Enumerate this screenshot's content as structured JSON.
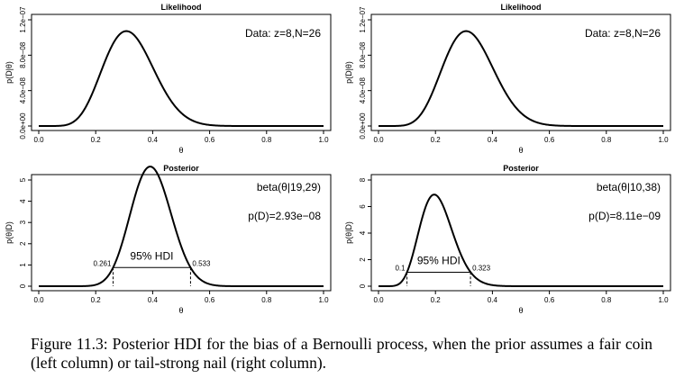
{
  "chart_data": [
    {
      "type": "line",
      "panel": "top-left",
      "title": "Likelihood",
      "xlabel": "θ",
      "ylabel": "p(D|θ)",
      "xlim": [
        0,
        1
      ],
      "ylim": [
        0,
        1.2e-07
      ],
      "xticks": [
        "0.0",
        "0.2",
        "0.4",
        "0.6",
        "0.8",
        "1.0"
      ],
      "yticks": [
        "0.0e+00",
        "4.0e−08",
        "8.0e−08",
        "1.2e−07"
      ],
      "annotation": "Data: z=8,N=26",
      "curve": {
        "kind": "likelihood",
        "z": 8,
        "N": 26
      }
    },
    {
      "type": "line",
      "panel": "top-right",
      "title": "Likelihood",
      "xlabel": "θ",
      "ylabel": "p(D|θ)",
      "xlim": [
        0,
        1
      ],
      "ylim": [
        0,
        1.2e-07
      ],
      "xticks": [
        "0.0",
        "0.2",
        "0.4",
        "0.6",
        "0.8",
        "1.0"
      ],
      "yticks": [
        "0.0e+00",
        "4.0e−08",
        "8.0e−08",
        "1.2e−07"
      ],
      "annotation": "Data: z=8,N=26",
      "curve": {
        "kind": "likelihood",
        "z": 8,
        "N": 26
      }
    },
    {
      "type": "line",
      "panel": "bottom-left",
      "title": "Posterior",
      "xlabel": "θ",
      "ylabel": "p(θ|D)",
      "xlim": [
        0,
        1
      ],
      "ylim": [
        0,
        5
      ],
      "xticks": [
        "0.0",
        "0.2",
        "0.4",
        "0.6",
        "0.8",
        "1.0"
      ],
      "yticks": [
        "0",
        "1",
        "2",
        "3",
        "4",
        "5"
      ],
      "annotation": "beta(θ|19,29)",
      "annotation2": "p(D)=2.93e−08",
      "curve": {
        "kind": "beta",
        "a": 19,
        "b": 29
      },
      "hdi": {
        "label": "95% HDI",
        "low": 0.261,
        "high": 0.533,
        "low_label": "0.261",
        "high_label": "0.533"
      }
    },
    {
      "type": "line",
      "panel": "bottom-right",
      "title": "Posterior",
      "xlabel": "θ",
      "ylabel": "p(θ|D)",
      "xlim": [
        0,
        1
      ],
      "ylim": [
        0,
        8
      ],
      "xticks": [
        "0.0",
        "0.2",
        "0.4",
        "0.6",
        "0.8",
        "1.0"
      ],
      "yticks": [
        "0",
        "2",
        "4",
        "6",
        "8"
      ],
      "annotation": "beta(θ|10,38)",
      "annotation2": "p(D)=8.11e−09",
      "curve": {
        "kind": "beta",
        "a": 10,
        "b": 38
      },
      "hdi": {
        "label": "95% HDI",
        "low": 0.1,
        "high": 0.323,
        "low_label": "0.1",
        "high_label": "0.323"
      }
    }
  ],
  "caption": "Figure 11.3: Posterior HDI for the bias of a Bernoulli process, when the prior assumes a fair coin (left column) or tail-strong nail (right column)."
}
